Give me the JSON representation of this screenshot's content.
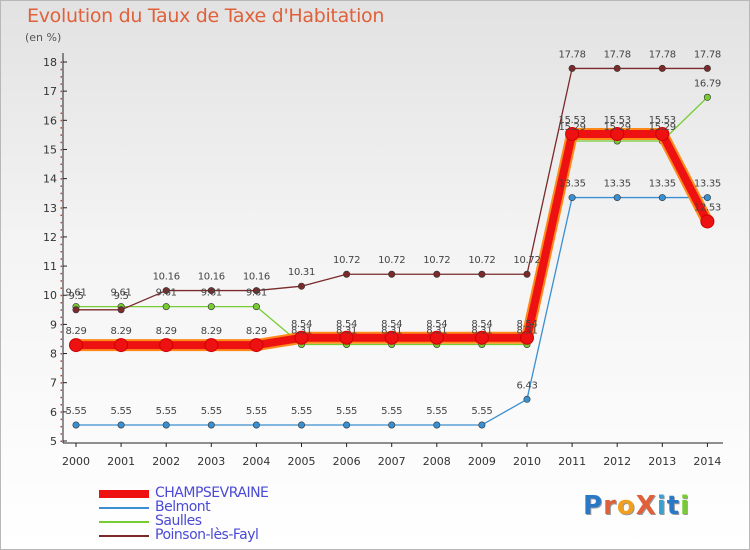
{
  "title": "Evolution du Taux de Taxe d'Habitation",
  "subtitle": "(en %)",
  "logo_text": "ProXiti",
  "chart_data": {
    "type": "line",
    "title": "Evolution du Taux de Taxe d'Habitation",
    "ylabel": "(en %)",
    "xlabel": "",
    "ylim": [
      5,
      18
    ],
    "yticks": [
      5,
      6,
      7,
      8,
      9,
      10,
      11,
      12,
      13,
      14,
      15,
      16,
      17,
      18
    ],
    "grid": false,
    "legend_position": "bottom-left",
    "x": [
      "2000",
      "2001",
      "2002",
      "2003",
      "2004",
      "2005",
      "2006",
      "2007",
      "2008",
      "2009",
      "2010",
      "2011",
      "2012",
      "2013",
      "2014"
    ],
    "series": [
      {
        "name": "CHAMPSEVRAINE",
        "color": "#ee1111",
        "values": [
          8.29,
          8.29,
          8.29,
          8.29,
          8.29,
          8.54,
          8.54,
          8.54,
          8.54,
          8.54,
          8.54,
          15.53,
          15.53,
          15.53,
          12.53
        ],
        "labels": [
          "8.29",
          "8.29",
          "8.29",
          "8.29",
          "8.29",
          "8.54",
          "8.54",
          "8.54",
          "8.54",
          "8.54",
          "8.54",
          "15.53",
          "15.53",
          "15.53",
          "12.53"
        ]
      },
      {
        "name": "Belmont",
        "color": "#3a8fd0",
        "values": [
          5.55,
          5.55,
          5.55,
          5.55,
          5.55,
          5.55,
          5.55,
          5.55,
          5.55,
          5.55,
          6.43,
          13.35,
          13.35,
          13.35,
          13.35
        ],
        "labels": [
          "5.55",
          "5.55",
          "5.55",
          "5.55",
          "5.55",
          "5.55",
          "5.55",
          "5.55",
          "5.55",
          "5.55",
          "6.43",
          "13.35",
          "13.35",
          "13.35",
          "13.35"
        ]
      },
      {
        "name": "Saulles",
        "color": "#77cc33",
        "values": [
          9.61,
          9.61,
          9.61,
          9.61,
          9.61,
          8.31,
          8.31,
          8.31,
          8.31,
          8.31,
          8.31,
          15.29,
          15.29,
          15.29,
          16.79
        ],
        "labels": [
          "9.61",
          "9.61",
          "9.61",
          "9.61",
          "9.61",
          "8.31",
          "8.31",
          "8.31",
          "8.31",
          "8.31",
          "8.31",
          "15.29",
          "15.29",
          "15.29",
          "16.79"
        ]
      },
      {
        "name": "Poinson-lès-Fayl",
        "color": "#7a2a2a",
        "values": [
          9.5,
          9.5,
          10.16,
          10.16,
          10.16,
          10.31,
          10.72,
          10.72,
          10.72,
          10.72,
          10.72,
          17.78,
          17.78,
          17.78,
          17.78
        ],
        "labels": [
          "9.5",
          "9.5",
          "10.16",
          "10.16",
          "10.16",
          "10.31",
          "10.72",
          "10.72",
          "10.72",
          "10.72",
          "10.72",
          "17.78",
          "17.78",
          "17.78",
          "17.78"
        ]
      }
    ]
  }
}
